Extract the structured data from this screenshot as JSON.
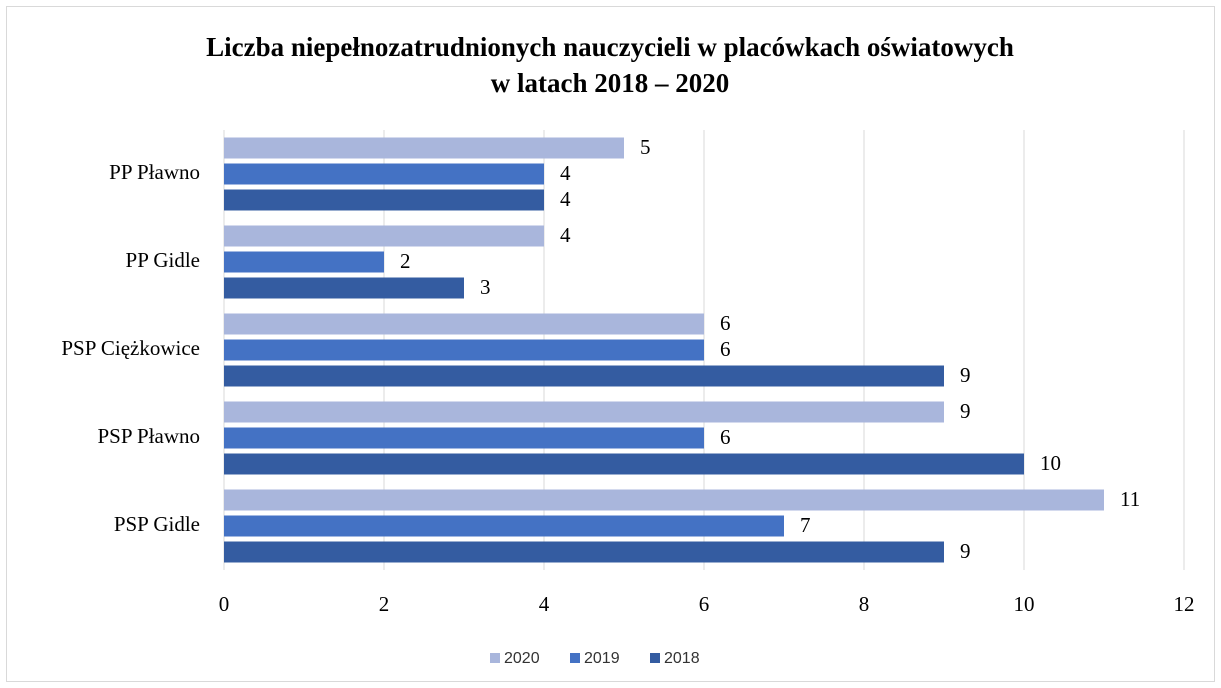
{
  "chart_data": {
    "type": "hbar",
    "title": [
      "Liczba niepełnozatrudnionych nauczycieli w placówkach oświatowych",
      "w latach 2018 – 2020"
    ],
    "categories": [
      "PP Pławno",
      "PP Gidle",
      "PSP Ciężkowice",
      "PSP Pławno",
      "PSP Gidle"
    ],
    "series": [
      {
        "name": "2020",
        "color": "#a9b6dc",
        "values": [
          5,
          4,
          6,
          9,
          11
        ]
      },
      {
        "name": "2019",
        "color": "#4472c4",
        "values": [
          4,
          2,
          6,
          6,
          7
        ]
      },
      {
        "name": "2018",
        "color": "#345ca1",
        "values": [
          4,
          3,
          9,
          10,
          9
        ]
      }
    ],
    "xlim": [
      0,
      12
    ],
    "xticks": [
      0,
      2,
      4,
      6,
      8,
      10,
      12
    ],
    "grid": true,
    "legend": "bottom"
  }
}
